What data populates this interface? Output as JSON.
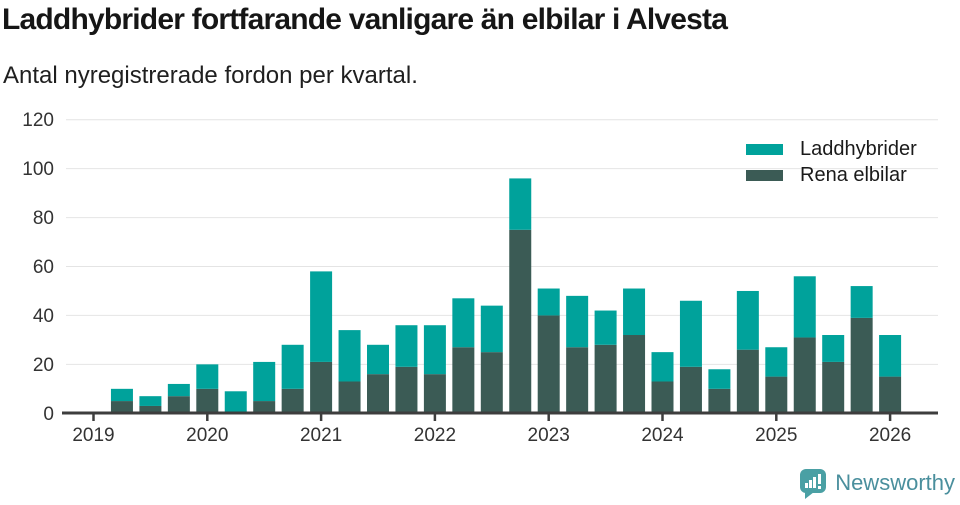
{
  "header": {
    "title": "Laddhybrider fortfarande vanligare än elbilar i Alvesta",
    "subtitle": "Antal nyregistrerade fordon per kvartal."
  },
  "legend": {
    "items": [
      {
        "label": "Laddhybrider",
        "color": "#00a29b"
      },
      {
        "label": "Rena elbilar",
        "color": "#3b5b55"
      }
    ]
  },
  "footer": {
    "brand": "Newsworthy",
    "logo_icon": "bar-chart-speech-bubble",
    "brand_color": "#4a8f9d",
    "icon_color": "#4aa0a4"
  },
  "colors": {
    "laddhybrider": "#00a29b",
    "rena_elbilar": "#3b5b55",
    "axis": "#3d3d3d",
    "gridline": "#e4e4e4",
    "tick_text": "#333333"
  },
  "chart_data": {
    "type": "bar",
    "stacked": true,
    "title": "Laddhybrider fortfarande vanligare än elbilar i Alvesta",
    "subtitle": "Antal nyregistrerade fordon per kvartal.",
    "xlabel": "",
    "ylabel": "",
    "ylim": [
      0,
      120
    ],
    "yticks": [
      0,
      20,
      40,
      60,
      80,
      100,
      120
    ],
    "xticks": [
      "2019",
      "2020",
      "2021",
      "2022",
      "2023",
      "2024",
      "2025",
      "2026"
    ],
    "grid": true,
    "legend_position": "top-right",
    "x": [
      "2019 Q2",
      "2019 Q3",
      "2019 Q4",
      "2020 Q1",
      "2020 Q2",
      "2020 Q3",
      "2020 Q4",
      "2021 Q1",
      "2021 Q2",
      "2021 Q3",
      "2021 Q4",
      "2022 Q1",
      "2022 Q2",
      "2022 Q3",
      "2022 Q4",
      "2023 Q1",
      "2023 Q2",
      "2023 Q3",
      "2023 Q4",
      "2024 Q1",
      "2024 Q2",
      "2024 Q3",
      "2024 Q4",
      "2025 Q1",
      "2025 Q2",
      "2025 Q3",
      "2025 Q4",
      "2026 Q1"
    ],
    "series": [
      {
        "name": "Laddhybrider",
        "color": "#00a29b",
        "stack_order": "top",
        "values": [
          5,
          4,
          5,
          10,
          9,
          16,
          18,
          37,
          21,
          12,
          17,
          20,
          20,
          19,
          21,
          11,
          21,
          14,
          19,
          12,
          27,
          8,
          24,
          12,
          25,
          11,
          13,
          17
        ]
      },
      {
        "name": "Rena elbilar",
        "color": "#3b5b55",
        "stack_order": "bottom",
        "values": [
          5,
          3,
          7,
          10,
          0,
          5,
          10,
          21,
          13,
          16,
          19,
          16,
          27,
          25,
          75,
          40,
          27,
          28,
          32,
          13,
          19,
          10,
          26,
          15,
          31,
          21,
          39,
          15
        ]
      }
    ],
    "totals": [
      10,
      7,
      12,
      20,
      9,
      21,
      28,
      58,
      34,
      28,
      36,
      36,
      47,
      44,
      96,
      51,
      48,
      42,
      51,
      25,
      46,
      18,
      50,
      27,
      56,
      32,
      52,
      32
    ]
  }
}
